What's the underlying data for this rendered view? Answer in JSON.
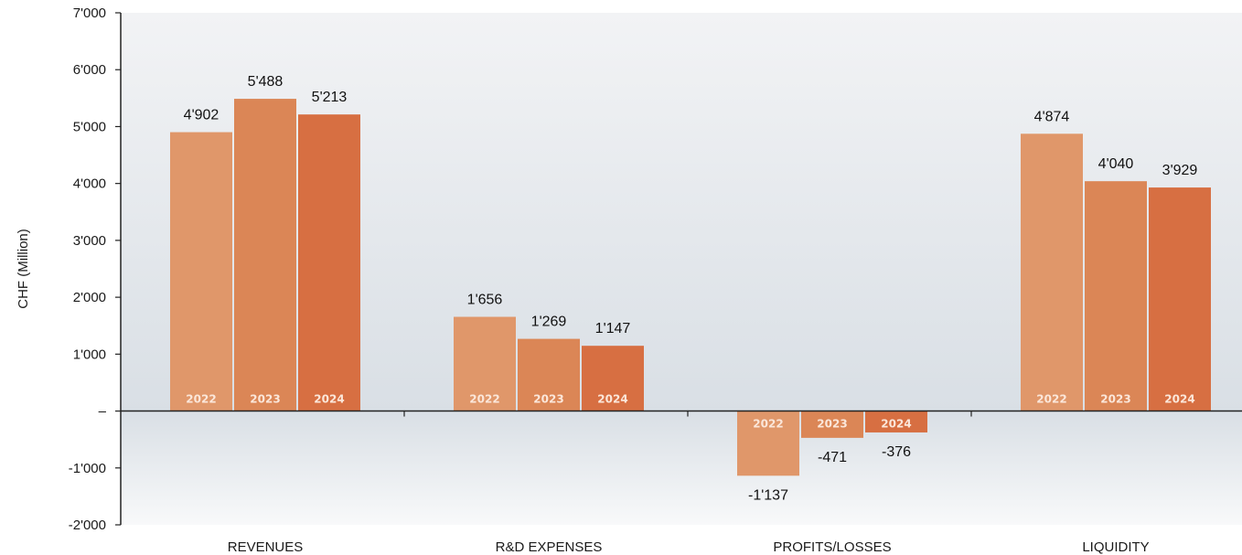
{
  "chart_data": {
    "type": "bar",
    "ylabel": "CHF (Million)",
    "ylim": [
      -2000,
      7000
    ],
    "y_ticks": [
      {
        "value": 7000,
        "label": "7'000"
      },
      {
        "value": 6000,
        "label": "6'000"
      },
      {
        "value": 5000,
        "label": "5'000"
      },
      {
        "value": 4000,
        "label": "4'000"
      },
      {
        "value": 3000,
        "label": "3'000"
      },
      {
        "value": 2000,
        "label": "2'000"
      },
      {
        "value": 1000,
        "label": "1'000"
      },
      {
        "value": 0,
        "label": "–"
      },
      {
        "value": -1000,
        "label": "-1'000"
      },
      {
        "value": -2000,
        "label": "-2'000"
      }
    ],
    "categories": [
      "REVENUES",
      "R&D EXPENSES",
      "PROFITS/LOSSES",
      "LIQUIDITY"
    ],
    "series": [
      {
        "name": "2022",
        "color": "#e0976a",
        "values": [
          4902,
          1656,
          -1137,
          4874
        ],
        "labels": [
          "4'902",
          "1'656",
          "-1'137",
          "4'874"
        ]
      },
      {
        "name": "2023",
        "color": "#db8656",
        "values": [
          5488,
          1269,
          -471,
          4040
        ],
        "labels": [
          "5'488",
          "1'269",
          "-471",
          "4'040"
        ]
      },
      {
        "name": "2024",
        "color": "#d76f42",
        "values": [
          5213,
          1147,
          -376,
          3929
        ],
        "labels": [
          "5'213",
          "1'147",
          "-376",
          "3'929"
        ]
      }
    ],
    "grid": false,
    "legend": "none (years printed inside bars)"
  }
}
